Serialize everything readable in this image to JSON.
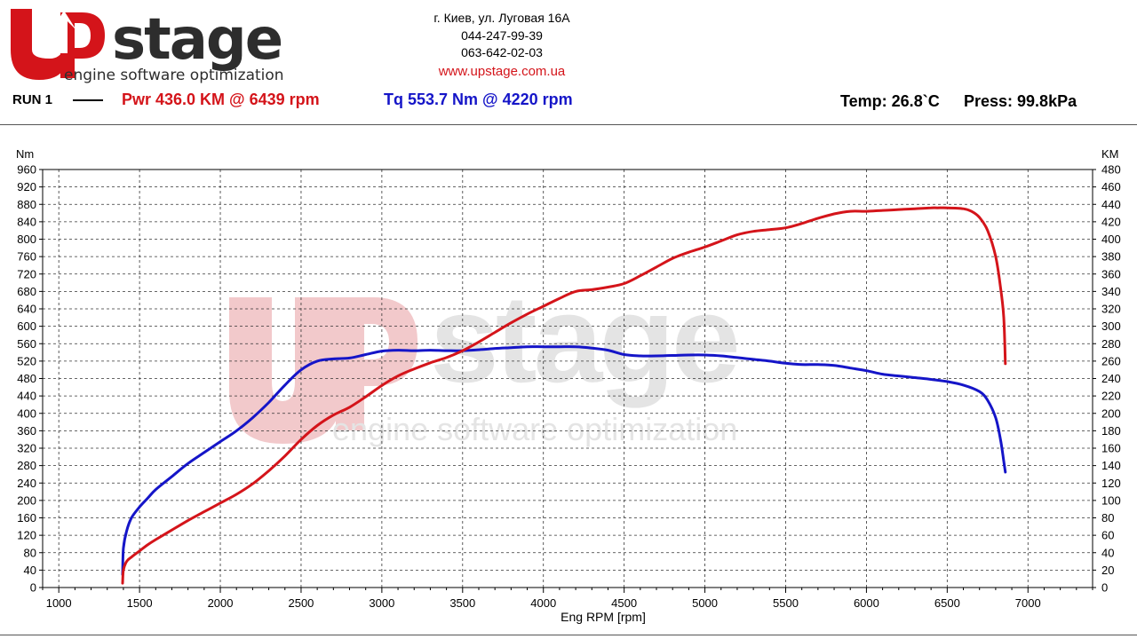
{
  "brand": {
    "logo_text": "Upstage",
    "tagline": "engine software optimization",
    "colors": {
      "red": "#d4141a",
      "dark": "#2d2d2d",
      "watermark_red": "#f2c9cb",
      "watermark_gray": "#e4e4e4"
    }
  },
  "contact": {
    "address": "г. Киев, ул. Луговая 16А",
    "phone1": "044-247-99-39",
    "phone2": "063-642-02-03",
    "website": "www.upstage.com.ua"
  },
  "header": {
    "run": "RUN 1",
    "power": "Pwr  436.0 KM @ 6439 rpm",
    "torque": "Tq 553.7 Nm @ 4220 rpm",
    "temp": "Temp: 26.8`C",
    "press": "Press: 99.8kPa"
  },
  "chart_data": {
    "type": "line",
    "title": "",
    "xlabel": "Eng RPM [rpm]",
    "ylabel": "Nm",
    "y2label": "KM",
    "xlim": [
      900,
      7400
    ],
    "ylim": [
      0,
      960
    ],
    "y2lim": [
      0,
      480
    ],
    "xticks": [
      1000,
      1500,
      2000,
      2500,
      3000,
      3500,
      4000,
      4500,
      5000,
      5500,
      6000,
      6500,
      7000
    ],
    "yticks": [
      0,
      40,
      80,
      120,
      160,
      200,
      240,
      280,
      320,
      360,
      400,
      440,
      480,
      520,
      560,
      600,
      640,
      680,
      720,
      760,
      800,
      840,
      880,
      920,
      960
    ],
    "y2ticks": [
      0,
      20,
      40,
      60,
      80,
      100,
      120,
      140,
      160,
      180,
      200,
      220,
      240,
      260,
      280,
      300,
      320,
      340,
      360,
      380,
      400,
      420,
      440,
      460,
      480
    ],
    "grid": true,
    "series": [
      {
        "name": "Tq",
        "axis": "left",
        "color": "#1515c8",
        "x": [
          1395,
          1400,
          1420,
          1450,
          1500,
          1550,
          1600,
          1700,
          1800,
          1900,
          2000,
          2100,
          2200,
          2300,
          2400,
          2500,
          2600,
          2700,
          2800,
          2900,
          3000,
          3100,
          3200,
          3300,
          3400,
          3500,
          3600,
          3700,
          3800,
          3900,
          4000,
          4100,
          4200,
          4300,
          4400,
          4500,
          4600,
          4700,
          4800,
          4900,
          5000,
          5100,
          5200,
          5300,
          5400,
          5500,
          5600,
          5700,
          5800,
          5900,
          6000,
          6100,
          6200,
          6300,
          6400,
          6500,
          6600,
          6700,
          6750,
          6800,
          6830,
          6850,
          6860
        ],
        "y": [
          30,
          90,
          130,
          160,
          185,
          205,
          225,
          255,
          285,
          310,
          335,
          360,
          390,
          425,
          465,
          500,
          520,
          525,
          527,
          535,
          543,
          545,
          544,
          545,
          544,
          544,
          546,
          549,
          551,
          553,
          553,
          553,
          553,
          550,
          545,
          535,
          532,
          532,
          533,
          534,
          534,
          532,
          528,
          524,
          520,
          515,
          512,
          512,
          510,
          504,
          498,
          490,
          486,
          482,
          478,
          473,
          465,
          450,
          430,
          390,
          340,
          290,
          265
        ]
      },
      {
        "name": "Pwr",
        "axis": "right",
        "color": "#d4141a",
        "x": [
          1395,
          1400,
          1420,
          1450,
          1500,
          1550,
          1600,
          1700,
          1800,
          1900,
          2000,
          2100,
          2200,
          2300,
          2400,
          2500,
          2600,
          2700,
          2800,
          2900,
          3000,
          3100,
          3200,
          3300,
          3400,
          3500,
          3600,
          3700,
          3800,
          3900,
          4000,
          4100,
          4200,
          4300,
          4400,
          4500,
          4600,
          4700,
          4800,
          4900,
          5000,
          5100,
          5200,
          5300,
          5400,
          5500,
          5600,
          5700,
          5800,
          5900,
          6000,
          6100,
          6200,
          6300,
          6400,
          6439,
          6500,
          6600,
          6650,
          6700,
          6750,
          6800,
          6830,
          6850,
          6860
        ],
        "y": [
          5,
          20,
          30,
          35,
          42,
          49,
          55,
          66,
          77,
          87,
          97,
          107,
          119,
          134,
          151,
          170,
          186,
          198,
          207,
          219,
          232,
          243,
          251,
          258,
          264,
          272,
          282,
          293,
          304,
          314,
          323,
          332,
          340,
          342,
          345,
          349,
          358,
          368,
          378,
          385,
          391,
          398,
          405,
          409,
          411,
          413,
          418,
          424,
          429,
          432,
          432,
          433,
          434,
          435,
          436,
          436,
          436,
          435,
          432,
          425,
          410,
          380,
          345,
          310,
          257
        ]
      }
    ]
  }
}
